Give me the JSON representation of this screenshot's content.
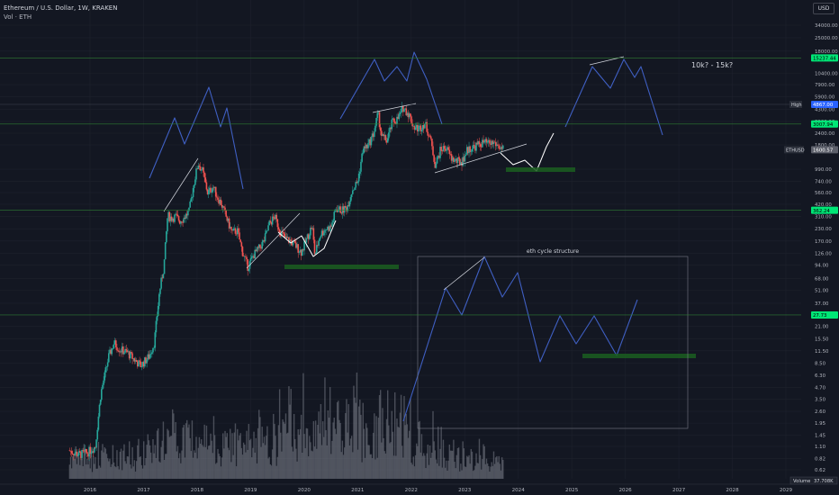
{
  "header": {
    "title": "Ethereum / U.S. Dollar, 1W, KRAKEN",
    "subtitle": "Vol · ETH"
  },
  "currency_button": "USD",
  "chart_data": {
    "type": "candlestick",
    "symbol": "ETHUSD",
    "y_scale": "log",
    "y_ticks": [
      34000,
      25000,
      18000,
      10400,
      7900,
      5900,
      4300,
      3200,
      2400,
      1800,
      990,
      740,
      560,
      420,
      310,
      230,
      170,
      126,
      94,
      68,
      51,
      37,
      21,
      15.5,
      11.5,
      8.5,
      6.3,
      4.7,
      3.5,
      2.6,
      1.95,
      1.45,
      1.1,
      0.82,
      0.62
    ],
    "y_tick_labels": [
      "34000.00",
      "25000.00",
      "18000.00",
      "10400.00",
      "7900.00",
      "5900.00",
      "4300.00",
      "3200.00",
      "2400.00",
      "1800.00",
      "990.00",
      "740.00",
      "560.00",
      "420.00",
      "310.00",
      "230.00",
      "170.00",
      "126.00",
      "94.00",
      "68.00",
      "51.00",
      "37.00",
      "21.00",
      "15.50",
      "11.50",
      "8.50",
      "6.30",
      "4.70",
      "3.50",
      "2.60",
      "1.95",
      "1.45",
      "1.10",
      "0.82",
      "0.62"
    ],
    "x_ticks": [
      "2016",
      "2017",
      "2018",
      "2019",
      "2020",
      "2021",
      "2022",
      "2023",
      "2024",
      "2025",
      "2026",
      "2027",
      "2028",
      "2029"
    ],
    "price_tags": [
      {
        "label": "15237.44",
        "value": 15237.44,
        "color": "#00e676"
      },
      {
        "label": "4867.00",
        "value": 4867,
        "color": "#2962ff",
        "prefix": "High"
      },
      {
        "label": "3007.94",
        "value": 3007.94,
        "color": "#00e676"
      },
      {
        "label": "1600.57",
        "value": 1600.57,
        "color": "#5d606b",
        "prefix": "ETHUSD"
      },
      {
        "label": "362.24",
        "value": 362.24,
        "color": "#00e676"
      },
      {
        "label": "27.73",
        "value": 27.73,
        "color": "#00e676"
      }
    ],
    "last_price": 1600.57,
    "volume_label": "Volume",
    "volume_value": "37.708K",
    "price_series": [
      [
        "2015.6",
        1.0
      ],
      [
        "2015.8",
        0.9
      ],
      [
        "2015.95",
        0.95
      ],
      [
        "2016.1",
        1.1
      ],
      [
        "2016.2",
        4.0
      ],
      [
        "2016.35",
        10
      ],
      [
        "2016.45",
        14
      ],
      [
        "2016.55",
        12
      ],
      [
        "2016.7",
        11
      ],
      [
        "2016.85",
        9
      ],
      [
        "2016.95",
        8
      ],
      [
        "2017.1",
        10
      ],
      [
        "2017.2",
        14
      ],
      [
        "2017.3",
        50
      ],
      [
        "2017.38",
        90
      ],
      [
        "2017.45",
        320
      ],
      [
        "2017.52",
        300
      ],
      [
        "2017.6",
        310
      ],
      [
        "2017.68",
        280
      ],
      [
        "2017.75",
        300
      ],
      [
        "2017.85",
        350
      ],
      [
        "2017.95",
        750
      ],
      [
        "2018.02",
        1150
      ],
      [
        "2018.1",
        950
      ],
      [
        "2018.2",
        550
      ],
      [
        "2018.3",
        650
      ],
      [
        "2018.38",
        500
      ],
      [
        "2018.45",
        430
      ],
      [
        "2018.55",
        300
      ],
      [
        "2018.65",
        210
      ],
      [
        "2018.75",
        220
      ],
      [
        "2018.85",
        130
      ],
      [
        "2018.95",
        90
      ],
      [
        "2019.05",
        120
      ],
      [
        "2019.15",
        140
      ],
      [
        "2019.25",
        170
      ],
      [
        "2019.35",
        260
      ],
      [
        "2019.45",
        310
      ],
      [
        "2019.55",
        220
      ],
      [
        "2019.65",
        180
      ],
      [
        "2019.75",
        170
      ],
      [
        "2019.85",
        150
      ],
      [
        "2019.95",
        130
      ],
      [
        "2020.05",
        180
      ],
      [
        "2020.15",
        250
      ],
      [
        "2020.2",
        120
      ],
      [
        "2020.3",
        200
      ],
      [
        "2020.4",
        230
      ],
      [
        "2020.5",
        240
      ],
      [
        "2020.6",
        380
      ],
      [
        "2020.7",
        360
      ],
      [
        "2020.8",
        390
      ],
      [
        "2020.9",
        600
      ],
      [
        "2021.0",
        730
      ],
      [
        "2021.1",
        1600
      ],
      [
        "2021.2",
        1800
      ],
      [
        "2021.3",
        2400
      ],
      [
        "2021.38",
        3900
      ],
      [
        "2021.45",
        2200
      ],
      [
        "2021.55",
        2000
      ],
      [
        "2021.65",
        3200
      ],
      [
        "2021.75",
        3400
      ],
      [
        "2021.85",
        4500
      ],
      [
        "2021.95",
        3900
      ],
      [
        "2022.05",
        2800
      ],
      [
        "2022.15",
        2700
      ],
      [
        "2022.25",
        3100
      ],
      [
        "2022.35",
        2200
      ],
      [
        "2022.45",
        1100
      ],
      [
        "2022.55",
        1600
      ],
      [
        "2022.65",
        1700
      ],
      [
        "2022.75",
        1300
      ],
      [
        "2022.85",
        1200
      ],
      [
        "2022.95",
        1200
      ],
      [
        "2023.05",
        1600
      ],
      [
        "2023.15",
        1700
      ],
      [
        "2023.25",
        1800
      ],
      [
        "2023.35",
        1900
      ],
      [
        "2023.45",
        1850
      ],
      [
        "2023.55",
        1900
      ],
      [
        "2023.65",
        1700
      ],
      [
        "2023.72",
        1600
      ]
    ],
    "annotations": [
      {
        "type": "text",
        "text": "10k? - 15k?"
      },
      {
        "type": "text",
        "text": "eth cycle structure"
      }
    ]
  }
}
